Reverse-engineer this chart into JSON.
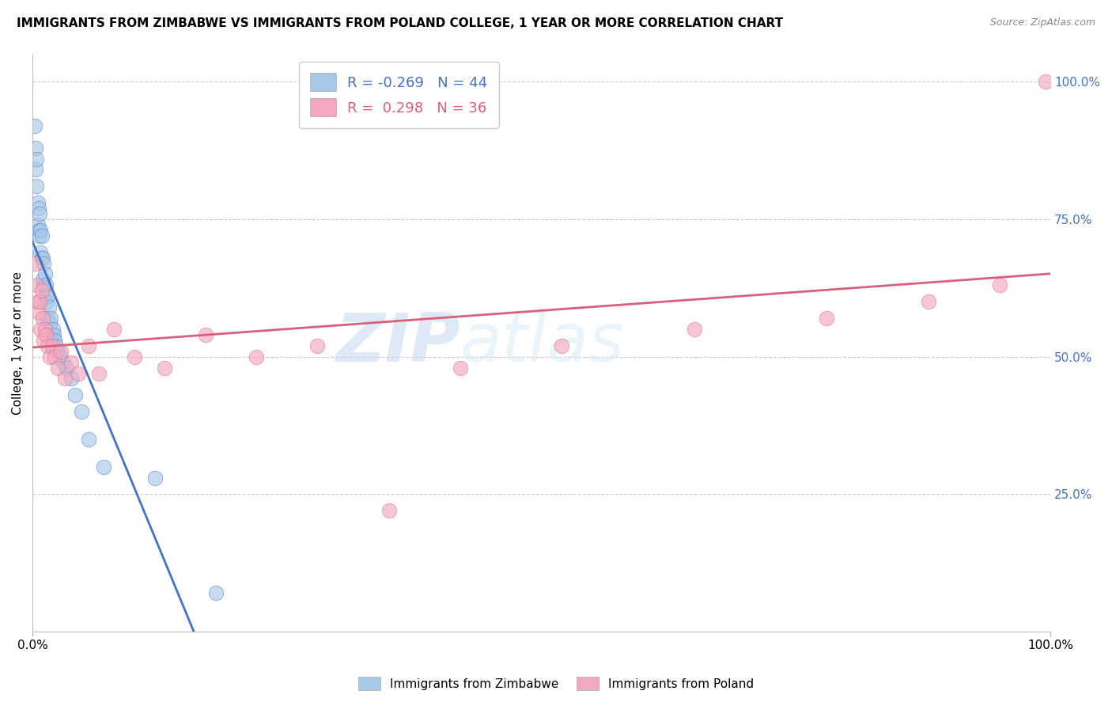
{
  "title": "IMMIGRANTS FROM ZIMBABWE VS IMMIGRANTS FROM POLAND COLLEGE, 1 YEAR OR MORE CORRELATION CHART",
  "source_text": "Source: ZipAtlas.com",
  "ylabel": "College, 1 year or more",
  "xlim": [
    0,
    1.0
  ],
  "ylim": [
    0,
    1.05
  ],
  "ytick_values": [
    0.25,
    0.5,
    0.75,
    1.0
  ],
  "legend_label1": "Immigrants from Zimbabwe",
  "legend_label2": "Immigrants from Poland",
  "r1": -0.269,
  "n1": 44,
  "r2": 0.298,
  "n2": 36,
  "color1": "#a8c8e8",
  "color2": "#f4a8bf",
  "line_color1": "#4472c4",
  "line_color2": "#d9607a",
  "background_color": "#ffffff",
  "grid_color": "#cccccc",
  "zimbabwe_x": [
    0.002,
    0.003,
    0.003,
    0.004,
    0.004,
    0.005,
    0.005,
    0.006,
    0.006,
    0.007,
    0.007,
    0.008,
    0.008,
    0.009,
    0.009,
    0.01,
    0.01,
    0.011,
    0.011,
    0.012,
    0.012,
    0.013,
    0.014,
    0.015,
    0.015,
    0.016,
    0.017,
    0.018,
    0.019,
    0.02,
    0.021,
    0.022,
    0.023,
    0.025,
    0.027,
    0.03,
    0.033,
    0.038,
    0.042,
    0.048,
    0.055,
    0.07,
    0.12,
    0.18
  ],
  "zimbabwe_y": [
    0.92,
    0.88,
    0.84,
    0.86,
    0.81,
    0.78,
    0.74,
    0.77,
    0.73,
    0.76,
    0.72,
    0.73,
    0.69,
    0.72,
    0.68,
    0.68,
    0.64,
    0.67,
    0.63,
    0.65,
    0.61,
    0.63,
    0.6,
    0.61,
    0.57,
    0.59,
    0.56,
    0.57,
    0.54,
    0.55,
    0.54,
    0.53,
    0.52,
    0.51,
    0.5,
    0.49,
    0.48,
    0.46,
    0.43,
    0.4,
    0.35,
    0.3,
    0.28,
    0.07
  ],
  "poland_x": [
    0.003,
    0.004,
    0.005,
    0.006,
    0.007,
    0.008,
    0.009,
    0.01,
    0.011,
    0.012,
    0.013,
    0.015,
    0.017,
    0.019,
    0.022,
    0.025,
    0.028,
    0.032,
    0.038,
    0.045,
    0.055,
    0.065,
    0.08,
    0.1,
    0.13,
    0.17,
    0.22,
    0.28,
    0.35,
    0.42,
    0.52,
    0.65,
    0.78,
    0.88,
    0.95,
    0.995
  ],
  "poland_y": [
    0.67,
    0.63,
    0.6,
    0.58,
    0.6,
    0.55,
    0.62,
    0.57,
    0.53,
    0.55,
    0.54,
    0.52,
    0.5,
    0.52,
    0.5,
    0.48,
    0.51,
    0.46,
    0.49,
    0.47,
    0.52,
    0.47,
    0.55,
    0.5,
    0.48,
    0.54,
    0.5,
    0.52,
    0.22,
    0.48,
    0.52,
    0.55,
    0.57,
    0.6,
    0.63,
    1.0
  ],
  "zim_line_x_end": 0.25,
  "watermark_text": "ZIP",
  "watermark_text2": "atlas"
}
